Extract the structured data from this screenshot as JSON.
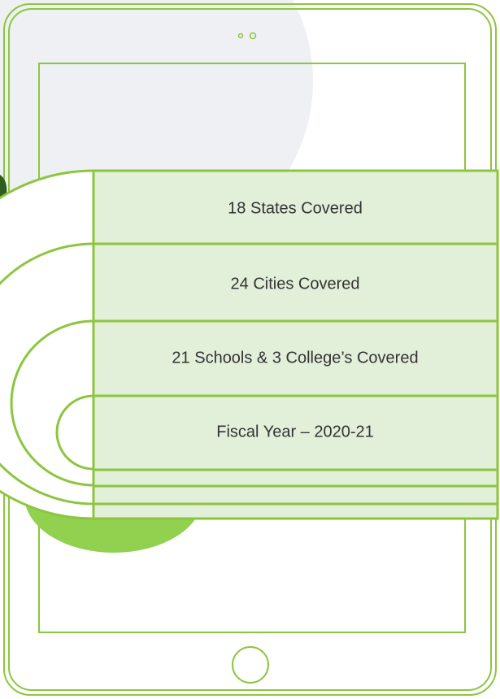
{
  "items": [
    {
      "label": "18 States Covered"
    },
    {
      "label": "24 Cities Covered"
    },
    {
      "label": "21 Schools & 3 College’s Covered"
    },
    {
      "label": "Fiscal Year – 2020-21"
    }
  ]
}
